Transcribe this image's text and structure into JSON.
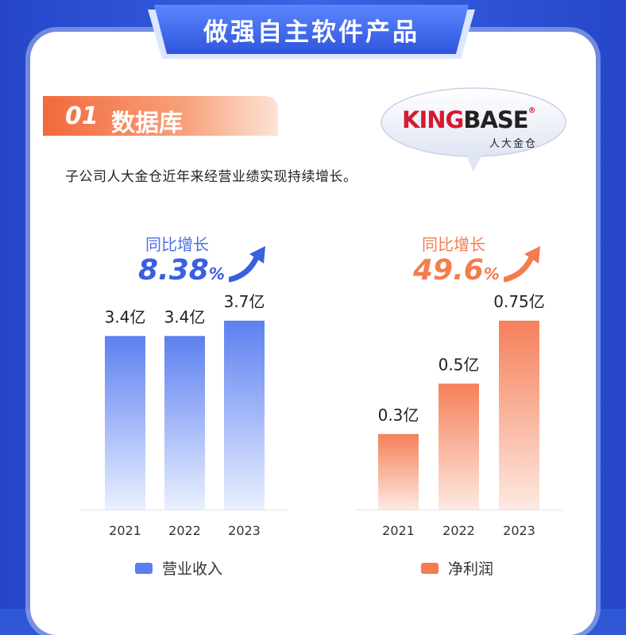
{
  "banner": {
    "title": "做强自主软件产品"
  },
  "section": {
    "number": "01",
    "title": "数据库"
  },
  "logo": {
    "main_red": "KING",
    "main_dark": "BASE",
    "reg": "®",
    "sub": "人大金仓"
  },
  "description": "子公司人大金仓近年来经营业绩实现持续增长。",
  "growth": {
    "revenue": {
      "label": "同比增长",
      "value": "8.38",
      "unit": "%"
    },
    "profit": {
      "label": "同比增长",
      "value": "49.6",
      "unit": "%"
    }
  },
  "colors": {
    "blue": "#3a5fe0",
    "orange": "#f47c4e",
    "banner": "#3b63e8"
  },
  "chart_data": [
    {
      "type": "bar",
      "categories": [
        "2021",
        "2022",
        "2023"
      ],
      "series": [
        {
          "name": "营业收入",
          "values": [
            3.4,
            3.4,
            3.7
          ]
        }
      ],
      "data_labels": [
        "3.4亿",
        "3.4亿",
        "3.7亿"
      ],
      "unit": "亿",
      "legend": "bottom-center",
      "grid": false
    },
    {
      "type": "bar",
      "categories": [
        "2021",
        "2022",
        "2023"
      ],
      "series": [
        {
          "name": "净利润",
          "values": [
            0.3,
            0.5,
            0.75
          ]
        }
      ],
      "data_labels": [
        "0.3亿",
        "0.5亿",
        "0.75亿"
      ],
      "unit": "亿",
      "legend": "bottom-center",
      "grid": false
    }
  ]
}
